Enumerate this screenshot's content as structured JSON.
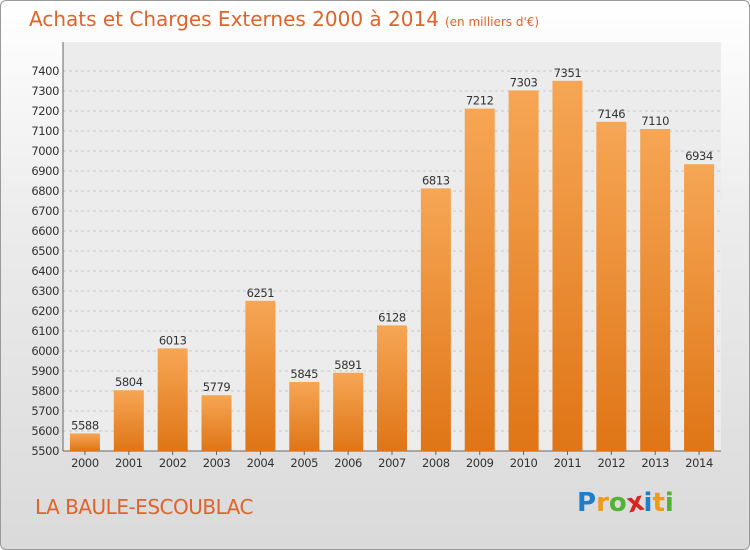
{
  "title": "Achats et Charges Externes 2000 à 2014",
  "unit": "(en milliers d'€)",
  "place": "LA BAULE-ESCOUBLAC",
  "logo": {
    "letters": [
      "P",
      "r",
      "o",
      "x",
      "i",
      "t",
      "i"
    ],
    "colors": [
      "#1f7ec7",
      "#f09a1a",
      "#54b234",
      "#d8261f",
      "#1f7ec7",
      "#f09a1a",
      "#54b234"
    ]
  },
  "colors": {
    "bar_top": "#f6a655",
    "bar_bottom": "#df7516",
    "accent": "#e0632c"
  },
  "chart_data": {
    "type": "bar",
    "categories": [
      "2000",
      "2001",
      "2002",
      "2003",
      "2004",
      "2005",
      "2006",
      "2007",
      "2008",
      "2009",
      "2010",
      "2011",
      "2012",
      "2013",
      "2014"
    ],
    "values": [
      5588,
      5804,
      6013,
      5779,
      6251,
      5845,
      5891,
      6128,
      6813,
      7212,
      7303,
      7351,
      7146,
      7110,
      6934
    ],
    "yticks": [
      5500,
      5600,
      5700,
      5800,
      5900,
      6000,
      6100,
      6200,
      6300,
      6400,
      6500,
      6600,
      6700,
      6800,
      6900,
      7000,
      7100,
      7200,
      7300,
      7400
    ],
    "ylim": [
      5500,
      7400
    ],
    "grid": true,
    "title": "Achats et Charges Externes 2000 à 2014",
    "xlabel": "",
    "ylabel": ""
  }
}
